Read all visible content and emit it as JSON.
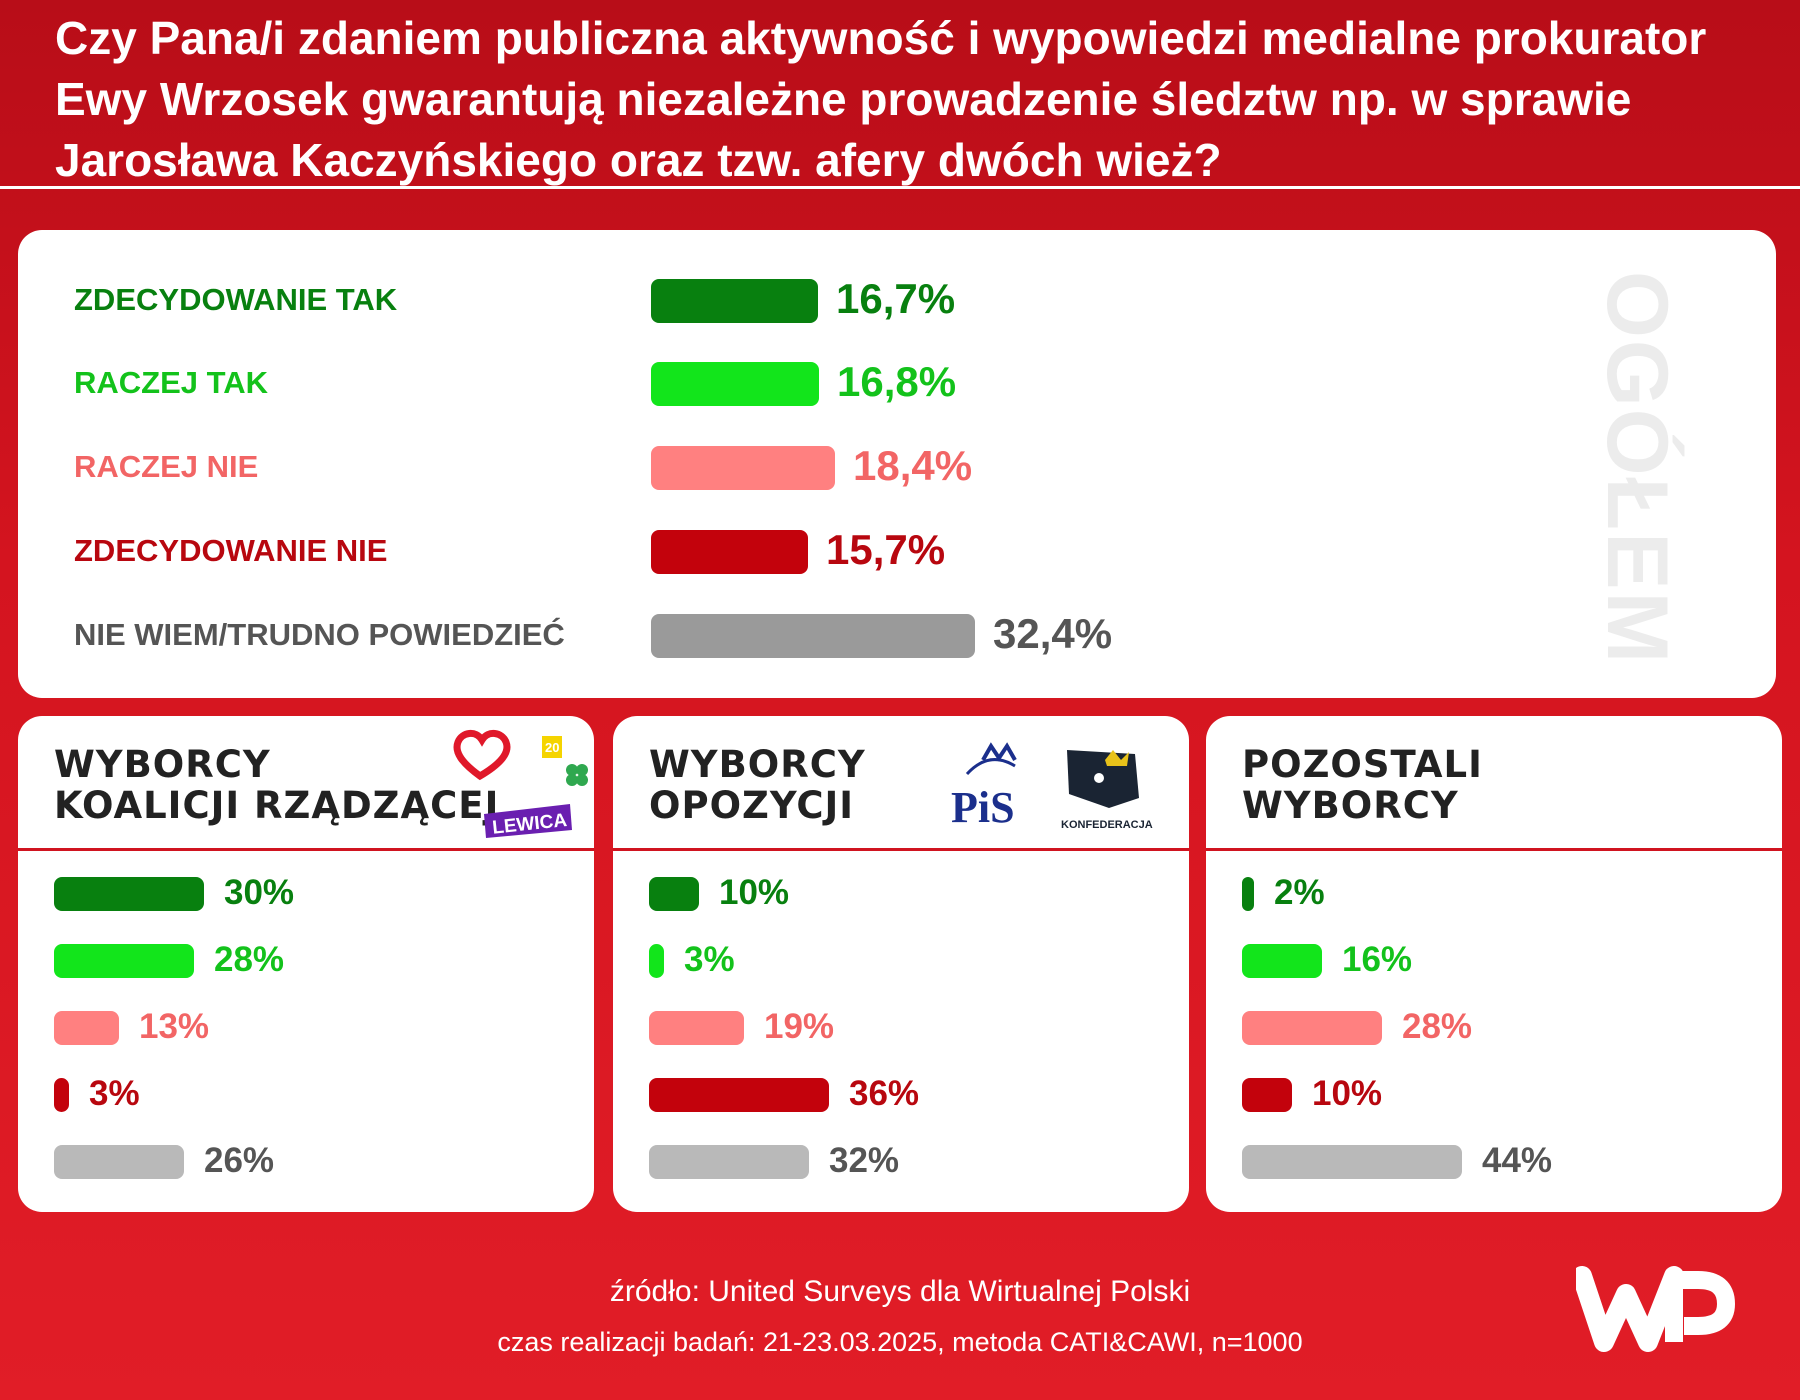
{
  "title": "Czy Pana/i zdaniem publiczna aktywność i wypowiedzi medialne prokurator Ewy Wrzosek gwarantują niezależne prowadzenie śledztw np. w sprawie Jarosława Kaczyńskiego oraz tzw. afery dwóch wież?",
  "overall": {
    "side_label": "OGÓŁEM"
  },
  "groups": [
    {
      "title_line1": "WYBORCY",
      "title_line2": "KOALICJI RZĄDZĄCEJ",
      "logos": [
        "heart-logo",
        "polska-2050-logo",
        "psl-clover-logo",
        "lewica-logo"
      ],
      "logo_text": "LEWICA"
    },
    {
      "title_line1": "WYBORCY",
      "title_line2": "OPOZYCJI",
      "logos": [
        "pis-logo",
        "konfederacja-logo"
      ],
      "logo_text": [
        "PiS",
        "KONFEDERACJA"
      ]
    },
    {
      "title_line1": "POZOSTALI",
      "title_line2": "WYBORCY"
    }
  ],
  "colors": {
    "zdecydowanie_tak": "#08800f",
    "raczej_tak": "#12e51b",
    "raczej_nie": "#ff8080",
    "zdecydowanie_nie": "#c3020c",
    "nie_wiem": "#9a9a9a",
    "background": "#d4141f"
  },
  "chart_data": [
    {
      "type": "bar",
      "orientation": "horizontal",
      "categories": [
        "ZDECYDOWANIE TAK",
        "RACZEJ TAK",
        "RACZEJ NIE",
        "ZDECYDOWANIE NIE",
        "NIE WIEM/TRUDNO POWIEDZIEĆ"
      ],
      "values": [
        16.7,
        16.8,
        18.4,
        15.7,
        32.4
      ],
      "value_labels": [
        "16,7%",
        "16,8%",
        "18,4%",
        "15,7%",
        "32,4%"
      ]
    },
    {
      "type": "bar",
      "orientation": "horizontal",
      "title": "WYBORCY KOALICJI RZĄDZĄCEJ",
      "categories": [
        "ZDECYDOWANIE TAK",
        "RACZEJ TAK",
        "RACZEJ NIE",
        "ZDECYDOWANIE NIE",
        "NIE WIEM/TRUDNO POWIEDZIEĆ"
      ],
      "values": [
        30,
        28,
        13,
        3,
        26
      ],
      "value_labels": [
        "30%",
        "28%",
        "13%",
        "3%",
        "26%"
      ]
    },
    {
      "type": "bar",
      "orientation": "horizontal",
      "title": "WYBORCY OPOZYCJI",
      "categories": [
        "ZDECYDOWANIE TAK",
        "RACZEJ TAK",
        "RACZEJ NIE",
        "ZDECYDOWANIE NIE",
        "NIE WIEM/TRUDNO POWIEDZIEĆ"
      ],
      "values": [
        10,
        3,
        19,
        36,
        32
      ],
      "value_labels": [
        "10%",
        "3%",
        "19%",
        "36%",
        "32%"
      ]
    },
    {
      "type": "bar",
      "orientation": "horizontal",
      "title": "POZOSTALI WYBORCY",
      "categories": [
        "ZDECYDOWANIE TAK",
        "RACZEJ TAK",
        "RACZEJ NIE",
        "ZDECYDOWANIE NIE",
        "NIE WIEM/TRUDNO POWIEDZIEĆ"
      ],
      "values": [
        2,
        16,
        28,
        10,
        44
      ],
      "value_labels": [
        "2%",
        "16%",
        "28%",
        "10%",
        "44%"
      ]
    }
  ],
  "footer": {
    "source": "źródło: United Surveys dla Wirtualnej Polski",
    "method": "czas realizacji badań: 21-23.03.2025, metoda CATI&CAWI, n=1000",
    "logo": "wp-logo"
  }
}
